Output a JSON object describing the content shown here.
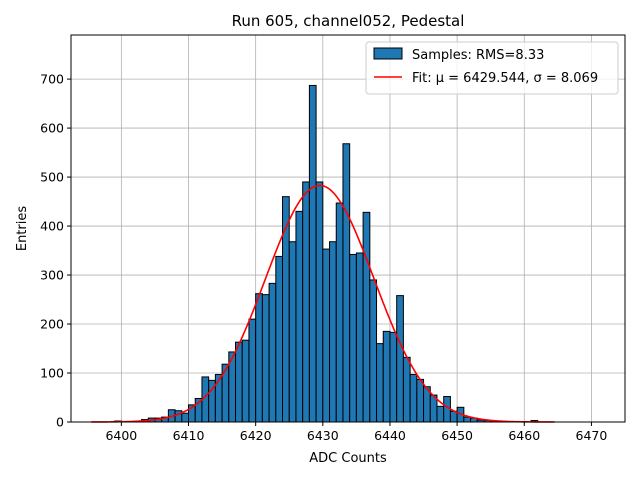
{
  "chart_data": {
    "type": "bar",
    "title": "Run 605, channel052, Pedestal",
    "xlabel": "ADC Counts",
    "ylabel": "Entries",
    "xlim": [
      6392.5,
      6475
    ],
    "ylim": [
      0,
      790
    ],
    "xticks": [
      6400,
      6410,
      6420,
      6430,
      6440,
      6450,
      6460,
      6470
    ],
    "yticks": [
      0,
      100,
      200,
      300,
      400,
      500,
      600,
      700
    ],
    "grid": true,
    "legend_position": "top-right",
    "bin_width": 1,
    "series": [
      {
        "name": "Samples: RMS=8.33",
        "type": "histogram",
        "color": "#1f77b4",
        "edge_color": "#000000",
        "bins": [
          6399,
          6400,
          6401,
          6402,
          6403,
          6404,
          6405,
          6406,
          6407,
          6408,
          6409,
          6410,
          6411,
          6412,
          6413,
          6414,
          6415,
          6416,
          6417,
          6418,
          6419,
          6420,
          6421,
          6422,
          6423,
          6424,
          6425,
          6426,
          6427,
          6428,
          6429,
          6430,
          6431,
          6432,
          6433,
          6434,
          6435,
          6436,
          6437,
          6438,
          6439,
          6440,
          6441,
          6442,
          6443,
          6444,
          6445,
          6446,
          6447,
          6448,
          6449,
          6450,
          6451,
          6452,
          6453,
          6454,
          6455,
          6461
        ],
        "counts": [
          2,
          0,
          0,
          2,
          5,
          8,
          8,
          10,
          25,
          23,
          18,
          35,
          48,
          92,
          85,
          97,
          118,
          143,
          163,
          167,
          210,
          262,
          260,
          283,
          338,
          460,
          368,
          430,
          490,
          687,
          490,
          353,
          368,
          447,
          568,
          342,
          345,
          428,
          290,
          160,
          185,
          183,
          258,
          132,
          97,
          87,
          72,
          55,
          32,
          52,
          22,
          30,
          10,
          8,
          4,
          3,
          2,
          3
        ]
      },
      {
        "name": "Fit: μ = 6429.544, σ = 8.069",
        "type": "gaussian-fit",
        "color": "#ff0000",
        "mu": 6429.544,
        "sigma": 8.069,
        "amplitude": 483,
        "x_range": [
          6395.5,
          6464.5
        ]
      }
    ]
  }
}
